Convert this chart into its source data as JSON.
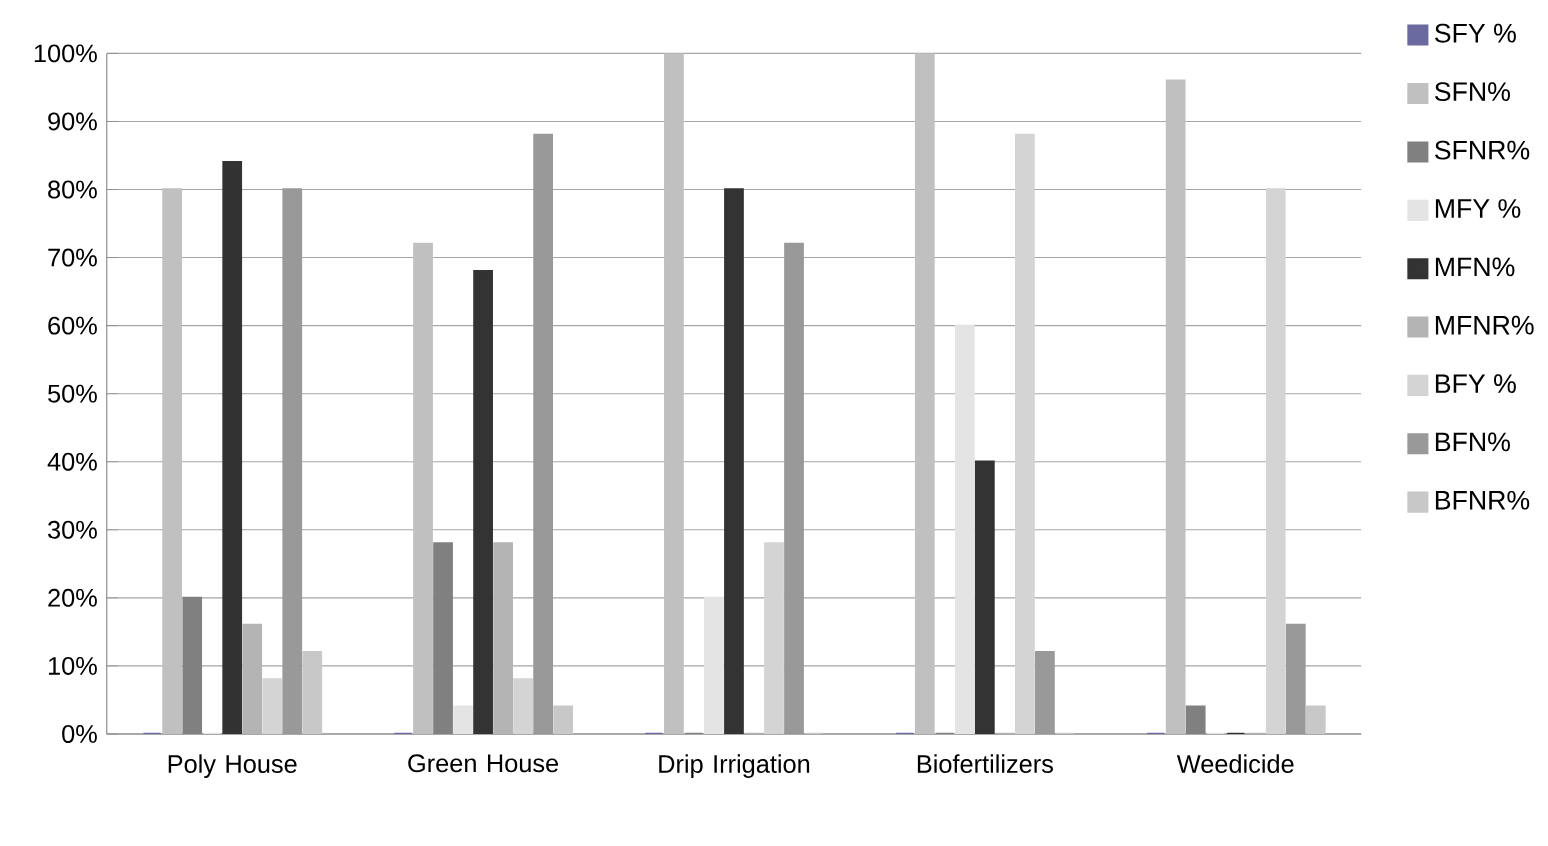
{
  "chart_data": {
    "type": "bar",
    "categories": [
      "Poly House",
      "Green House",
      "Drip Irrigation",
      "Biofertilizers",
      "Weedicide"
    ],
    "series": [
      {
        "name": "SFY %",
        "color": "#6a6aa0",
        "values": [
          0,
          0,
          0,
          0,
          0
        ]
      },
      {
        "name": "SFN%",
        "color": "#c0c0c0",
        "values": [
          80,
          72,
          100,
          100,
          96
        ]
      },
      {
        "name": "SFNR%",
        "color": "#808080",
        "values": [
          20,
          28,
          0,
          0,
          4
        ]
      },
      {
        "name": "MFY %",
        "color": "#e4e4e4",
        "values": [
          0,
          4,
          20,
          60,
          0
        ]
      },
      {
        "name": "MFN%",
        "color": "#333333",
        "values": [
          84,
          68,
          80,
          40,
          0
        ]
      },
      {
        "name": "MFNR%",
        "color": "#b4b4b4",
        "values": [
          16,
          28,
          0,
          0,
          0
        ]
      },
      {
        "name": "BFY %",
        "color": "#d4d4d4",
        "values": [
          8,
          8,
          28,
          88,
          80
        ]
      },
      {
        "name": "BFN%",
        "color": "#999999",
        "values": [
          80,
          88,
          72,
          12,
          16
        ]
      },
      {
        "name": "BFNR%",
        "color": "#c8c8c8",
        "values": [
          12,
          4,
          0,
          0,
          4
        ]
      }
    ],
    "ylim": [
      0,
      100
    ],
    "yticks": [
      {
        "value": 0,
        "label": "0%"
      },
      {
        "value": 10,
        "label": "10%"
      },
      {
        "value": 20,
        "label": "20%"
      },
      {
        "value": 30,
        "label": "30%"
      },
      {
        "value": 40,
        "label": "40%"
      },
      {
        "value": 50,
        "label": "50%"
      },
      {
        "value": 60,
        "label": "60%"
      },
      {
        "value": 70,
        "label": "70%"
      },
      {
        "value": 80,
        "label": "80%"
      },
      {
        "value": 90,
        "label": "90%"
      },
      {
        "value": 100,
        "label": "100%"
      }
    ],
    "grid": "y",
    "legend": "right"
  }
}
